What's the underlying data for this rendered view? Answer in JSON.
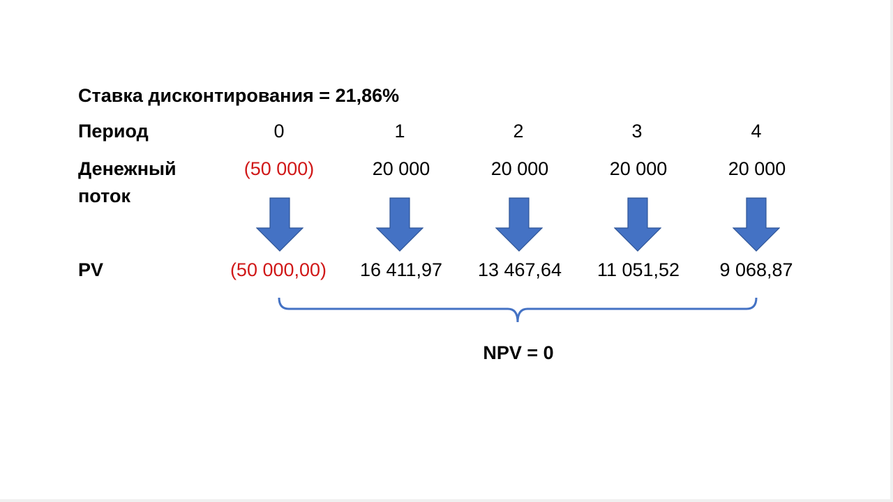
{
  "discount_rate_label": "Ставка дисконтирования = 21,86%",
  "period_label": "Период",
  "cashflow_label_line1": "Денежный",
  "cashflow_label_line2": "поток",
  "pv_label": "PV",
  "periods": [
    "0",
    "1",
    "2",
    "3",
    "4"
  ],
  "cashflows": [
    "(50 000)",
    "20 000",
    "20 000",
    "20 000",
    "20 000"
  ],
  "present_values": [
    "(50 000,00)",
    "16 411,97",
    "13 467,64",
    "11 051,52",
    "9 068,87"
  ],
  "npv_label": "NPV = 0",
  "colors": {
    "negative": "#d01818",
    "arrow": "#4472c4",
    "arrow_border": "#2f5597",
    "bracket": "#4472c4"
  }
}
